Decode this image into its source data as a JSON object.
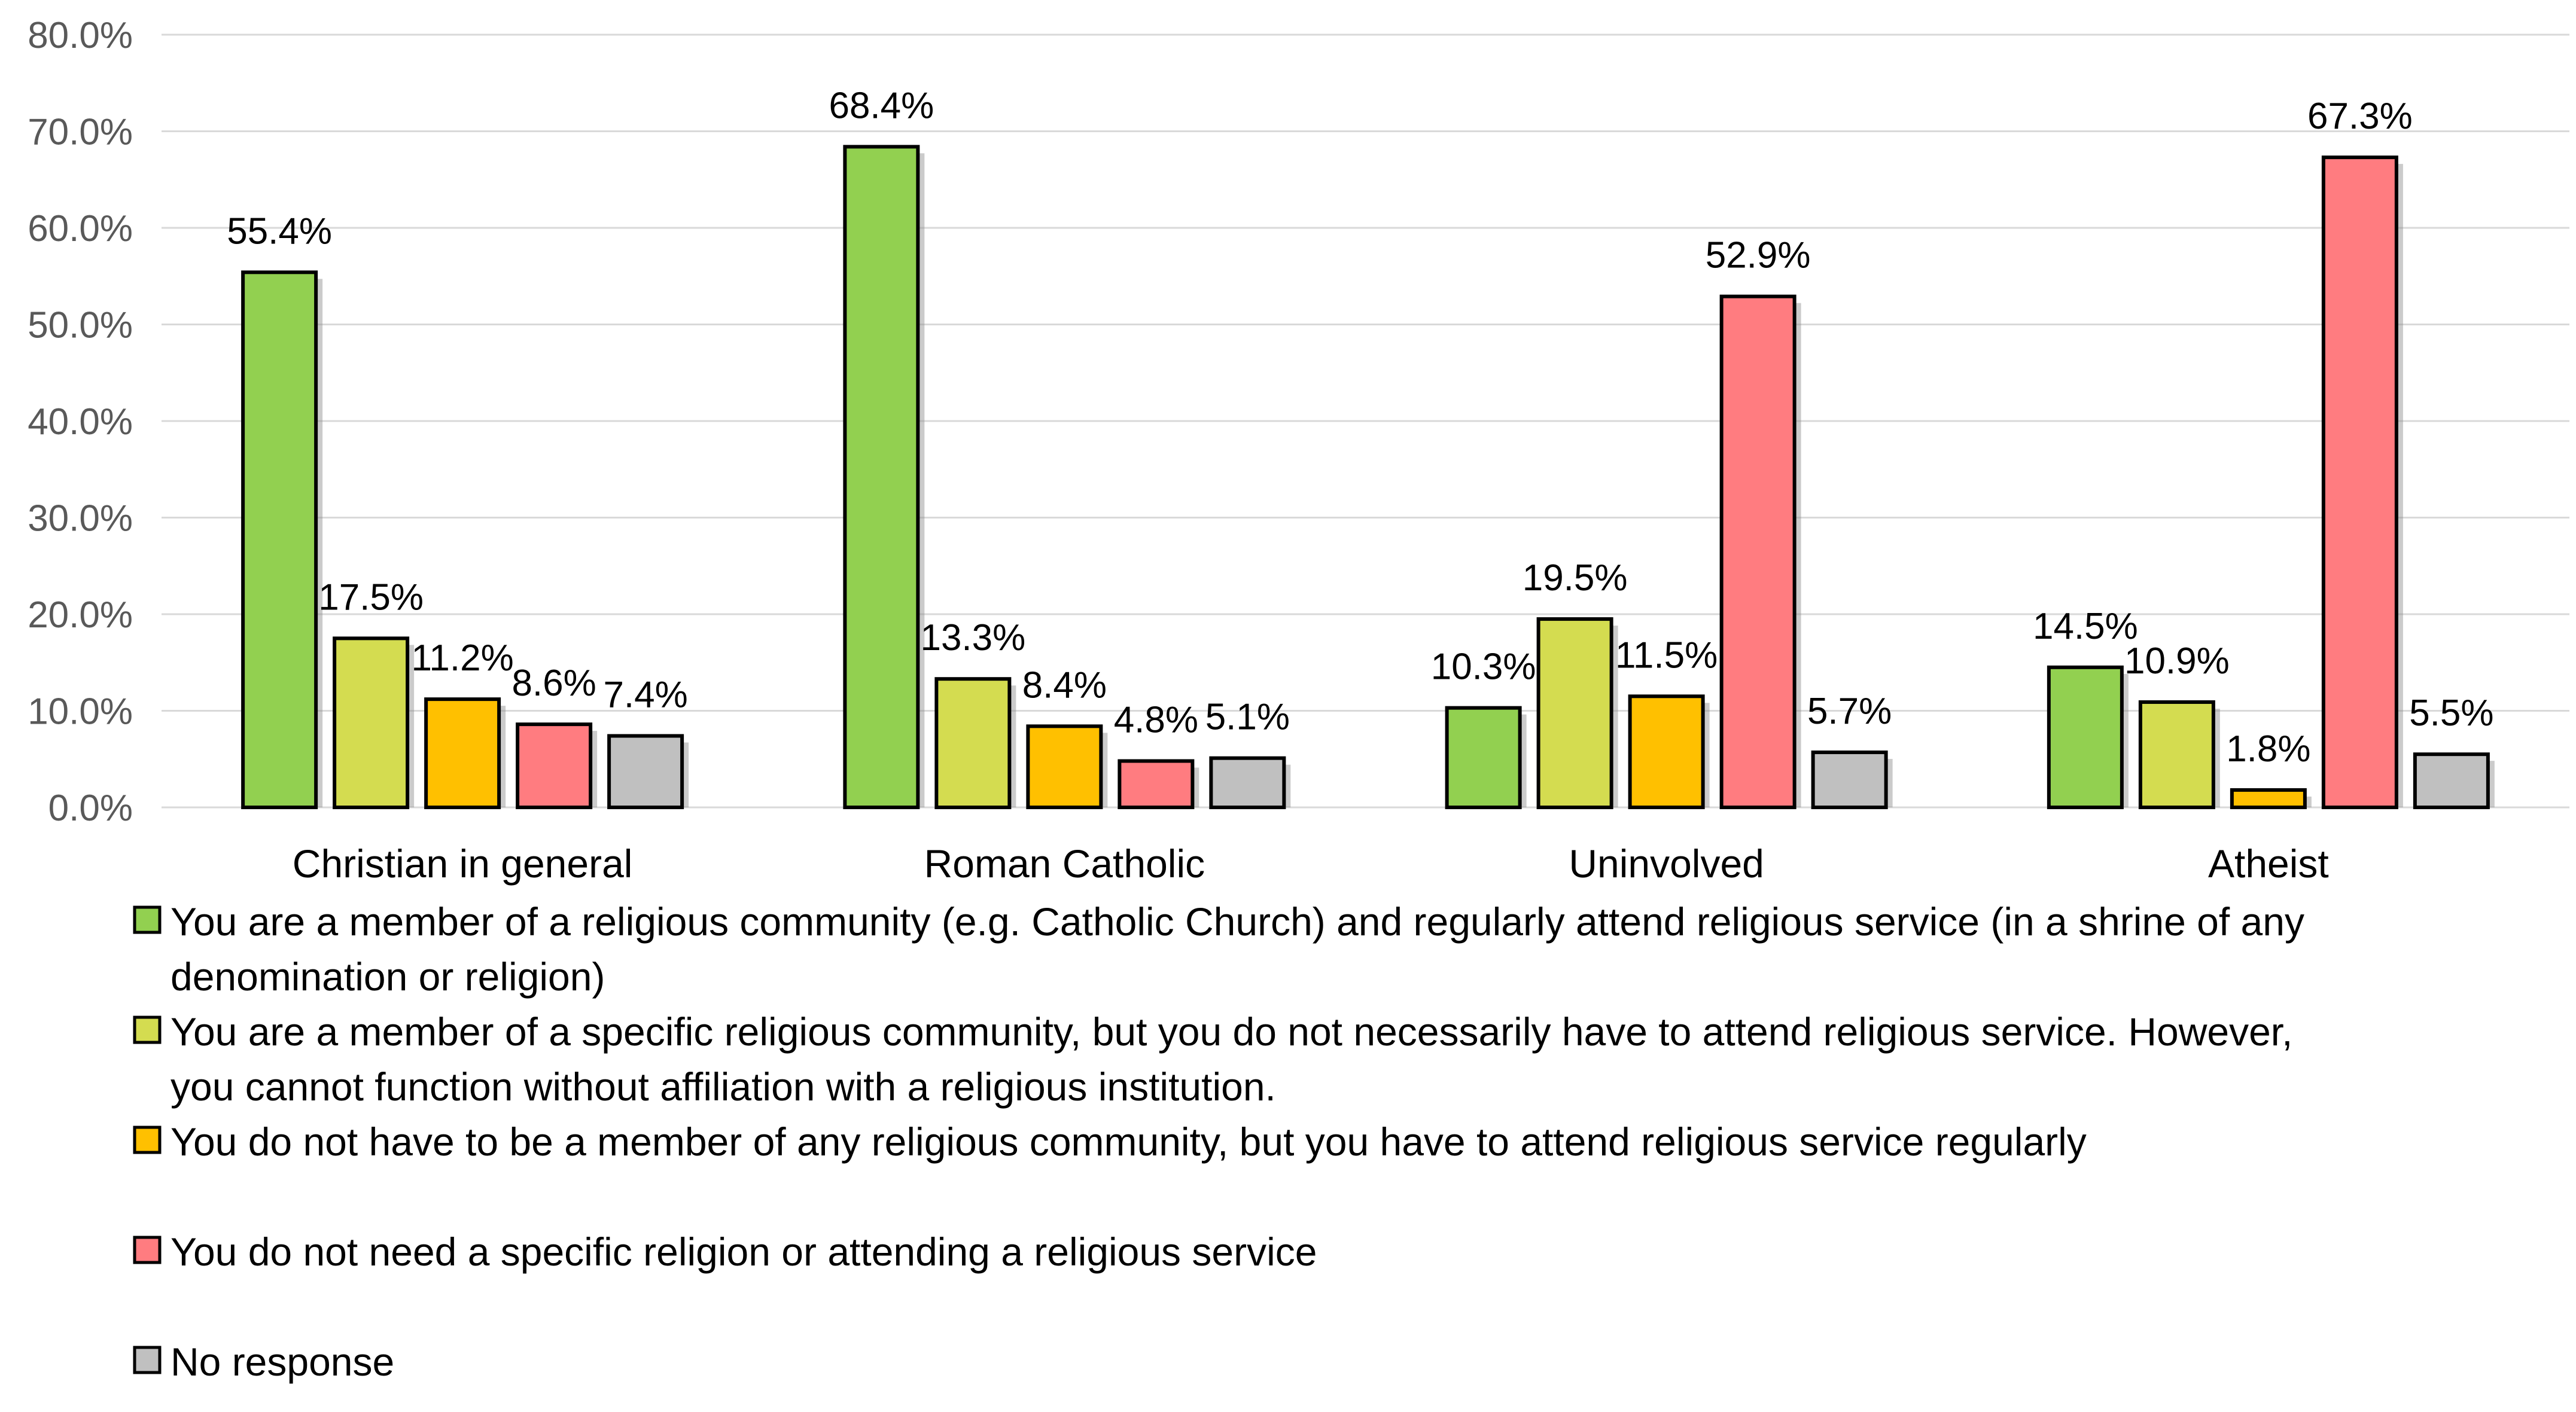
{
  "chart_data": {
    "type": "bar",
    "title": "",
    "xlabel": "",
    "ylabel": "",
    "ylim": [
      0,
      80
    ],
    "yticks": [
      "0.0%",
      "10.0%",
      "20.0%",
      "30.0%",
      "40.0%",
      "50.0%",
      "60.0%",
      "70.0%",
      "80.0%"
    ],
    "grid": true,
    "legend_position": "bottom",
    "categories": [
      "Christian in general",
      "Roman Catholic",
      "Uninvolved",
      "Atheist"
    ],
    "series": [
      {
        "name": "You are a member of a religious community (e.g. Catholic Church) and regularly attend religious service (in a shrine of any denomination or religion)",
        "legend_lines": [
          "You are a member of a religious community (e.g. Catholic Church) and regularly attend religious service (in a shrine of any",
          "denomination or religion)"
        ],
        "color": "#92d050",
        "values": [
          55.4,
          68.4,
          10.3,
          14.5
        ],
        "labels": [
          "55.4%",
          "68.4%",
          "10.3%",
          "14.5%"
        ]
      },
      {
        "name": "You are a member of a specific religious community, but you do not necessarily have to attend religious service. However, you cannot function without affiliation with a religious institution.",
        "legend_lines": [
          "You are a member of a specific religious community, but you do not necessarily have to attend religious service. However,",
          "you cannot function without affiliation with a religious institution."
        ],
        "color": "#d4dc50",
        "values": [
          17.5,
          13.3,
          19.5,
          10.9
        ],
        "labels": [
          "17.5%",
          "13.3%",
          "19.5%",
          "10.9%"
        ]
      },
      {
        "name": "You do not have to be a member of any religious community, but you have to attend religious service regularly",
        "legend_lines": [
          "You do not have to be a member of any religious community, but you have to attend religious service regularly"
        ],
        "color": "#ffc000",
        "values": [
          11.2,
          8.4,
          11.5,
          1.8
        ],
        "labels": [
          "11.2%",
          "8.4%",
          "11.5%",
          "1.8%"
        ]
      },
      {
        "name": "You do not need a specific religion or attending a religious service",
        "legend_lines": [
          "You do not need a specific religion or attending a religious service"
        ],
        "color": "#ff7c80",
        "values": [
          8.6,
          4.8,
          52.9,
          67.3
        ],
        "labels": [
          "8.6%",
          "4.8%",
          "52.9%",
          "67.3%"
        ]
      },
      {
        "name": "No response",
        "legend_lines": [
          "No response"
        ],
        "color": "#c0c0c0",
        "values": [
          7.4,
          5.1,
          5.7,
          5.5
        ],
        "labels": [
          "7.4%",
          "5.1%",
          "5.7%",
          "5.5%"
        ]
      }
    ]
  }
}
